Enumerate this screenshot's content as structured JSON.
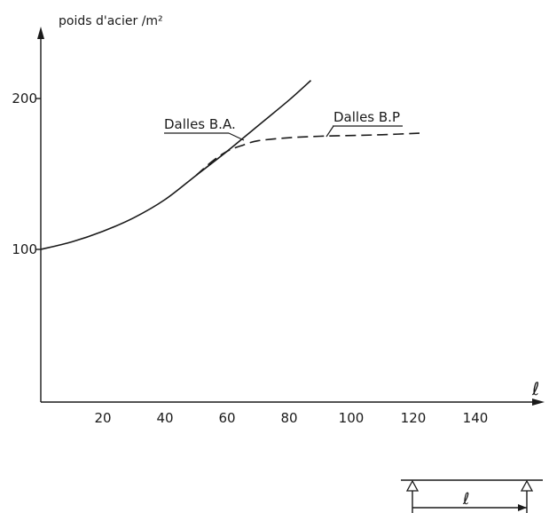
{
  "chart_data": {
    "type": "line",
    "ylabel": "poids d'acier /m²",
    "xlabel": "ℓ",
    "x_ticks": [
      20,
      40,
      60,
      80,
      100,
      120,
      140
    ],
    "y_ticks": [
      100,
      200
    ],
    "xlim": [
      0,
      168
    ],
    "ylim": [
      0,
      245
    ],
    "grid": false,
    "series": [
      {
        "name": "Dalles B.A.",
        "style": "solid",
        "x": [
          0,
          10,
          20,
          30,
          40,
          50,
          60,
          70,
          80,
          87
        ],
        "y": [
          100,
          105,
          112,
          121,
          133,
          149,
          165,
          182,
          199,
          212
        ]
      },
      {
        "name": "Dalles B.P",
        "style": "dashed",
        "x": [
          50,
          55,
          60,
          65,
          70,
          80,
          90,
          100,
          110,
          122
        ],
        "y": [
          149,
          158,
          165,
          169,
          172,
          174,
          175,
          175.5,
          176,
          177
        ]
      }
    ],
    "inset": {
      "type": "simply-supported-span",
      "label": "ℓ"
    }
  }
}
